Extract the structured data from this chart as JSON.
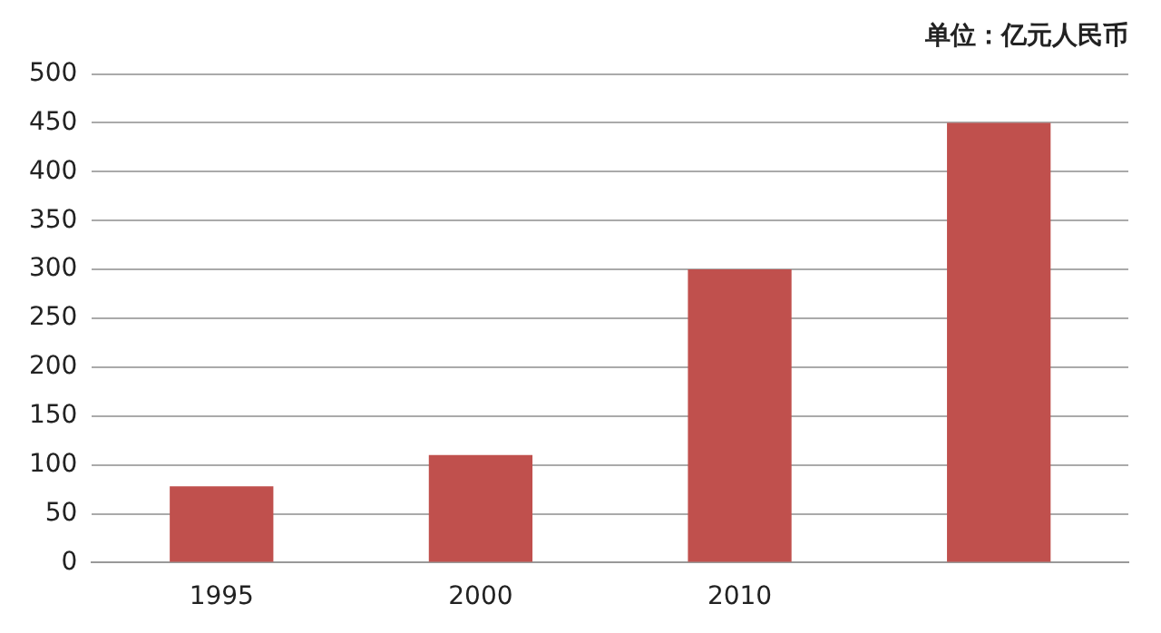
{
  "chart_data": {
    "type": "bar",
    "subtitle": "单位：亿元人民币",
    "categories": [
      "1995",
      "2000",
      "2010",
      null
    ],
    "values": [
      78,
      110,
      300,
      450
    ],
    "color": "#c0504d",
    "ylim": [
      0,
      500
    ],
    "yticks": [
      0,
      50,
      100,
      150,
      200,
      250,
      300,
      350,
      400,
      450,
      500
    ],
    "grid": "y",
    "legend": false
  }
}
